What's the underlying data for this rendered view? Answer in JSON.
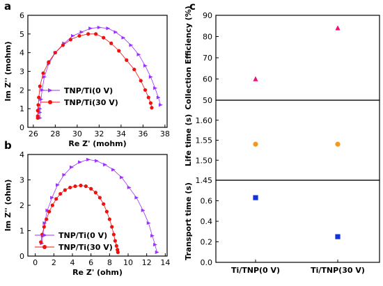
{
  "colors": {
    "purple": "#9b30ff",
    "red": "#ee1111",
    "magenta": "#ee1177",
    "orange": "#f39a1e",
    "blue": "#1133dd"
  },
  "chart_data": [
    {
      "id": "a",
      "type": "scatter",
      "panel_letter": "a",
      "xlabel": "Re Z' (mohm)",
      "ylabel": "Im Z'' (mohm)",
      "xlim": [
        25.5,
        38.2
      ],
      "ylim": [
        0,
        6
      ],
      "xticks": [
        26,
        28,
        30,
        32,
        34,
        36,
        38
      ],
      "yticks": [
        0,
        1,
        2,
        3,
        4,
        5,
        6
      ],
      "legend_position": "center-left",
      "series": [
        {
          "name": "TNP/Ti(0 V)",
          "marker": "triangle-right",
          "color": "#9b30ff",
          "connect": true,
          "points": [
            [
              26.6,
              0.5
            ],
            [
              26.6,
              0.8
            ],
            [
              26.6,
              1.0
            ],
            [
              26.7,
              1.5
            ],
            [
              26.8,
              2.0
            ],
            [
              27.0,
              2.7
            ],
            [
              27.4,
              3.4
            ],
            [
              28.0,
              4.0
            ],
            [
              28.8,
              4.5
            ],
            [
              29.6,
              4.9
            ],
            [
              30.4,
              5.1
            ],
            [
              31.2,
              5.3
            ],
            [
              32.0,
              5.35
            ],
            [
              32.8,
              5.3
            ],
            [
              33.5,
              5.1
            ],
            [
              34.2,
              4.8
            ],
            [
              34.9,
              4.4
            ],
            [
              35.6,
              3.9
            ],
            [
              36.2,
              3.3
            ],
            [
              36.7,
              2.7
            ],
            [
              37.1,
              2.1
            ],
            [
              37.4,
              1.6
            ],
            [
              37.6,
              1.2
            ]
          ]
        },
        {
          "name": "TNP/Ti(30 V)",
          "marker": "circle",
          "color": "#ee1111",
          "connect": true,
          "points": [
            [
              26.4,
              0.5
            ],
            [
              26.4,
              0.6
            ],
            [
              26.4,
              0.9
            ],
            [
              26.45,
              1.2
            ],
            [
              26.5,
              1.6
            ],
            [
              26.6,
              2.2
            ],
            [
              26.9,
              2.9
            ],
            [
              27.4,
              3.5
            ],
            [
              28.0,
              4.0
            ],
            [
              28.7,
              4.4
            ],
            [
              29.4,
              4.7
            ],
            [
              30.2,
              4.9
            ],
            [
              31.0,
              5.0
            ],
            [
              31.7,
              5.0
            ],
            [
              32.4,
              4.8
            ],
            [
              33.1,
              4.5
            ],
            [
              33.8,
              4.1
            ],
            [
              34.5,
              3.6
            ],
            [
              35.2,
              3.1
            ],
            [
              35.8,
              2.5
            ],
            [
              36.2,
              2.0
            ],
            [
              36.5,
              1.6
            ],
            [
              36.7,
              1.3
            ],
            [
              36.8,
              1.05
            ]
          ]
        }
      ]
    },
    {
      "id": "b",
      "type": "scatter",
      "panel_letter": "b",
      "xlabel": "Re Z' (ohm)",
      "ylabel": "Im Z'' (ohm)",
      "xlim": [
        -0.8,
        14.2
      ],
      "ylim": [
        0,
        4
      ],
      "xticks": [
        0,
        2,
        4,
        6,
        8,
        10,
        12,
        14
      ],
      "yticks": [
        0,
        1,
        2,
        3,
        4
      ],
      "legend_position": "bottom-left",
      "series": [
        {
          "name": "TNP/Ti(0 V)",
          "marker": "triangle-right",
          "color": "#9b30ff",
          "connect": true,
          "points": [
            [
              0.7,
              0.5
            ],
            [
              0.8,
              0.8
            ],
            [
              1.0,
              1.3
            ],
            [
              1.3,
              1.8
            ],
            [
              1.8,
              2.3
            ],
            [
              2.4,
              2.8
            ],
            [
              3.1,
              3.2
            ],
            [
              3.9,
              3.5
            ],
            [
              4.8,
              3.7
            ],
            [
              5.7,
              3.8
            ],
            [
              6.6,
              3.75
            ],
            [
              7.5,
              3.6
            ],
            [
              8.4,
              3.4
            ],
            [
              9.3,
              3.1
            ],
            [
              10.1,
              2.7
            ],
            [
              10.9,
              2.3
            ],
            [
              11.6,
              1.8
            ],
            [
              12.2,
              1.3
            ],
            [
              12.6,
              0.8
            ],
            [
              12.9,
              0.45
            ],
            [
              13.1,
              0.15
            ]
          ]
        },
        {
          "name": "TNP/Ti(30 V)",
          "marker": "circle",
          "color": "#ee1111",
          "connect": true,
          "points": [
            [
              0.6,
              0.55
            ],
            [
              0.75,
              0.85
            ],
            [
              0.95,
              1.15
            ],
            [
              1.2,
              1.45
            ],
            [
              1.5,
              1.75
            ],
            [
              1.85,
              2.0
            ],
            [
              2.25,
              2.25
            ],
            [
              2.7,
              2.45
            ],
            [
              3.2,
              2.6
            ],
            [
              3.75,
              2.7
            ],
            [
              4.3,
              2.75
            ],
            [
              4.9,
              2.78
            ],
            [
              5.45,
              2.75
            ],
            [
              6.0,
              2.65
            ],
            [
              6.5,
              2.5
            ],
            [
              6.95,
              2.3
            ],
            [
              7.35,
              2.05
            ],
            [
              7.7,
              1.75
            ],
            [
              8.0,
              1.45
            ],
            [
              8.25,
              1.15
            ],
            [
              8.45,
              0.85
            ],
            [
              8.6,
              0.6
            ],
            [
              8.75,
              0.4
            ],
            [
              8.85,
              0.25
            ],
            [
              8.9,
              0.15
            ]
          ]
        }
      ]
    },
    {
      "id": "c",
      "type": "scatter",
      "panel_letter": "c",
      "categories": [
        "Ti/TNP(0 V)",
        "Ti/TNP(30 V)"
      ],
      "subplots": [
        {
          "ylabel": "Collection Efficiency (%)",
          "ylim": [
            50,
            90
          ],
          "yticks": [
            50,
            60,
            70,
            80,
            90
          ],
          "values": [
            60,
            84
          ],
          "marker": "triangle-up",
          "color": "#ee1177"
        },
        {
          "ylabel": "Life time (s)",
          "ylim": [
            1.45,
            1.65
          ],
          "yticks": [
            1.45,
            1.5,
            1.55,
            1.6
          ],
          "ytick_labels": [
            "1.45",
            "1.50",
            "1.55",
            "1.60"
          ],
          "values": [
            1.54,
            1.54
          ],
          "marker": "circle",
          "color": "#f39a1e"
        },
        {
          "ylabel": "Transport time (s)",
          "ylim": [
            0.0,
            0.8
          ],
          "yticks": [
            0.0,
            0.2,
            0.4,
            0.6
          ],
          "ytick_labels": [
            "0.0",
            "0.2",
            "0.4",
            "0.6"
          ],
          "values": [
            0.63,
            0.25
          ],
          "marker": "square",
          "color": "#1133dd"
        }
      ]
    }
  ]
}
